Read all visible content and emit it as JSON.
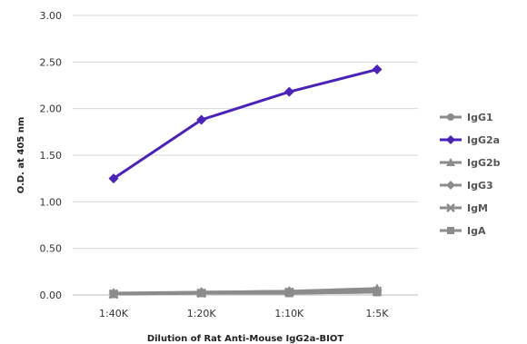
{
  "chart_data": {
    "type": "line",
    "categories": [
      "1:40K",
      "1:20K",
      "1:10K",
      "1:5K"
    ],
    "ylim": [
      0,
      3
    ],
    "yticks": [
      "0.00",
      "0.50",
      "1.00",
      "1.50",
      "2.00",
      "2.50",
      "3.00"
    ],
    "ylabel": "O.D. at 405 nm",
    "xlabel": "Dilution of Rat Anti-Mouse IgG2a-BIOT",
    "grid": true,
    "legend_position": "right",
    "series": [
      {
        "name": "IgG1",
        "values": [
          0.01,
          0.02,
          0.02,
          0.03
        ],
        "color": "#8c8c8c",
        "marker": "circle"
      },
      {
        "name": "IgG2a",
        "values": [
          1.25,
          1.88,
          2.18,
          2.42
        ],
        "color": "#4b23b8",
        "marker": "diamond"
      },
      {
        "name": "IgG2b",
        "values": [
          0.01,
          0.03,
          0.04,
          0.07
        ],
        "color": "#8c8c8c",
        "marker": "triangle"
      },
      {
        "name": "IgG3",
        "values": [
          0.02,
          0.03,
          0.04,
          0.05
        ],
        "color": "#8c8c8c",
        "marker": "diamond"
      },
      {
        "name": "IgM",
        "values": [
          0.01,
          0.02,
          0.03,
          0.04
        ],
        "color": "#8c8c8c",
        "marker": "cross"
      },
      {
        "name": "IgA",
        "values": [
          0.01,
          0.02,
          0.02,
          0.03
        ],
        "color": "#8c8c8c",
        "marker": "square"
      }
    ]
  }
}
